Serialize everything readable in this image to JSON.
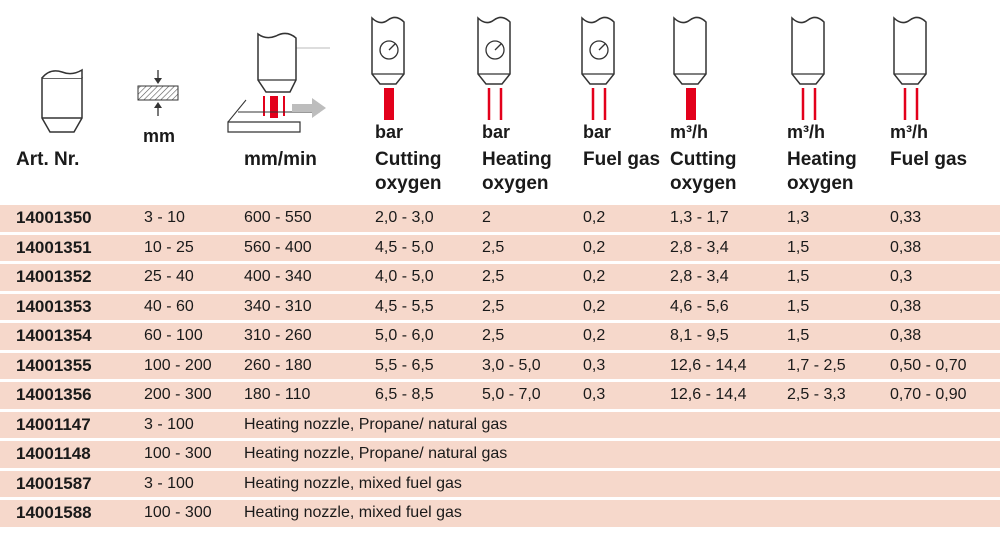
{
  "units": {
    "mm": "mm",
    "bar1": "bar",
    "bar2": "bar",
    "bar3": "bar",
    "m3h1": "m³/h",
    "m3h2": "m³/h",
    "m3h3": "m³/h"
  },
  "headers": {
    "art": "Art. Nr.",
    "speed": "mm/min",
    "cutting_oxygen": "Cutting\noxygen",
    "heating_oxygen": "Heating\noxygen",
    "fuel_gas": "Fuel gas",
    "cutting_oxygen_flow": "Cutting\noxygen",
    "heating_oxygen_flow": "Heating\noxygen",
    "fuel_gas_flow": "Fuel gas"
  },
  "rows": [
    {
      "art": "14001350",
      "mm": "3 - 10",
      "speed": "600 - 550",
      "cut_bar": "2,0 - 3,0",
      "heat_bar": "2",
      "fuel_bar": "0,2",
      "cut_flow": "1,3 - 1,7",
      "heat_flow": "1,3",
      "fuel_flow": "0,33"
    },
    {
      "art": "14001351",
      "mm": "10 - 25",
      "speed": "560 - 400",
      "cut_bar": "4,5 - 5,0",
      "heat_bar": "2,5",
      "fuel_bar": "0,2",
      "cut_flow": "2,8 - 3,4",
      "heat_flow": "1,5",
      "fuel_flow": "0,38"
    },
    {
      "art": "14001352",
      "mm": "25 - 40",
      "speed": "400 - 340",
      "cut_bar": "4,0 - 5,0",
      "heat_bar": "2,5",
      "fuel_bar": "0,2",
      "cut_flow": "2,8 - 3,4",
      "heat_flow": "1,5",
      "fuel_flow": "0,3"
    },
    {
      "art": "14001353",
      "mm": "40 - 60",
      "speed": "340 - 310",
      "cut_bar": "4,5 - 5,5",
      "heat_bar": "2,5",
      "fuel_bar": "0,2",
      "cut_flow": "4,6 - 5,6",
      "heat_flow": "1,5",
      "fuel_flow": "0,38"
    },
    {
      "art": "14001354",
      "mm": "60 - 100",
      "speed": "310 - 260",
      "cut_bar": "5,0 - 6,0",
      "heat_bar": "2,5",
      "fuel_bar": "0,2",
      "cut_flow": "8,1 - 9,5",
      "heat_flow": "1,5",
      "fuel_flow": "0,38"
    },
    {
      "art": "14001355",
      "mm": "100 - 200",
      "speed": "260 - 180",
      "cut_bar": "5,5 - 6,5",
      "heat_bar": "3,0 - 5,0",
      "fuel_bar": "0,3",
      "cut_flow": "12,6 - 14,4",
      "heat_flow": "1,7 - 2,5",
      "fuel_flow": "0,50 - 0,70"
    },
    {
      "art": "14001356",
      "mm": "200 - 300",
      "speed": "180 - 110",
      "cut_bar": "6,5 - 8,5",
      "heat_bar": "5,0 - 7,0",
      "fuel_bar": "0,3",
      "cut_flow": "12,6 - 14,4",
      "heat_flow": "2,5 - 3,3",
      "fuel_flow": "0,70 - 0,90"
    }
  ],
  "nozzles": [
    {
      "art": "14001147",
      "mm": "3 - 100",
      "desc": "Heating nozzle, Propane/ natural gas"
    },
    {
      "art": "14001148",
      "mm": "100 - 300",
      "desc": "Heating nozzle, Propane/ natural gas"
    },
    {
      "art": "14001587",
      "mm": "3 - 100",
      "desc": "Heating nozzle, mixed fuel gas"
    },
    {
      "art": "14001588",
      "mm": "100 - 300",
      "desc": "Heating nozzle, mixed fuel gas"
    }
  ],
  "colors": {
    "row_shade": "#f6d8cb",
    "jet_red": "#e3001b",
    "icon_stroke": "#333333",
    "arrow_grey": "#bdbdbd"
  }
}
